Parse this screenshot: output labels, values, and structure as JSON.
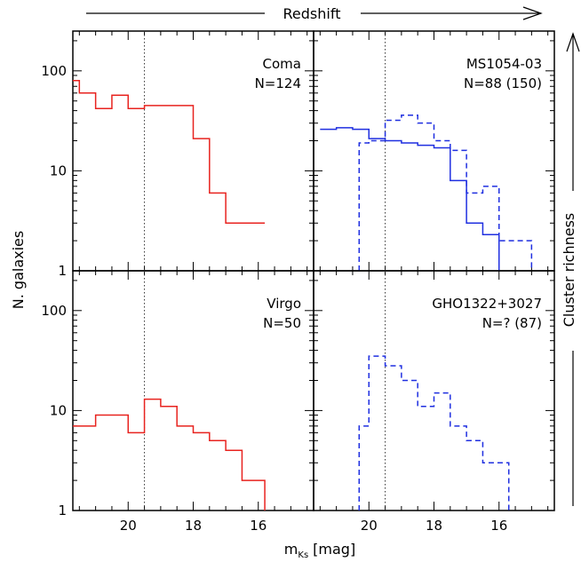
{
  "figure": {
    "top_label": "Redshift",
    "right_label": "Cluster richness",
    "ylabel": "N. galaxies",
    "xlabel_main": "m",
    "xlabel_sub": "Ks",
    "xlabel_unit": "[mag]"
  },
  "chart_data": [
    {
      "type": "histogram",
      "panel": "top-left",
      "name_label": "Coma",
      "n_label": "N=124",
      "xlim": [
        21.7,
        14.3
      ],
      "ylim": [
        1,
        250
      ],
      "yscale": "log",
      "xticks": [
        "20",
        "18",
        "16"
      ],
      "yticks": [
        "1",
        "10",
        "100"
      ],
      "vline_x": 19.5,
      "series": [
        {
          "color": "#e8231f",
          "dash": "solid",
          "edges": [
            21.7,
            21.5,
            21.0,
            20.5,
            20.0,
            19.5,
            19.0,
            18.0,
            17.5,
            17.0,
            15.8
          ],
          "values": [
            80,
            60,
            42,
            57,
            42,
            45,
            45,
            21,
            6,
            3,
            3
          ],
          "end_to": 1
        }
      ]
    },
    {
      "type": "histogram",
      "panel": "top-right",
      "name_label": "MS1054-03",
      "n_label": "N=88 (150)",
      "xlim": [
        21.7,
        14.3
      ],
      "ylim": [
        1,
        250
      ],
      "yscale": "log",
      "xticks": [
        "20",
        "18",
        "16"
      ],
      "yticks": [
        "1",
        "10",
        "100"
      ],
      "vline_x": 19.5,
      "series": [
        {
          "color": "#1f2fe0",
          "dash": "solid",
          "edges": [
            21.5,
            21.0,
            20.5,
            20.0,
            19.5,
            19.0,
            18.5,
            18.0,
            17.5,
            17.0,
            16.5,
            16.0
          ],
          "values": [
            26,
            27,
            26,
            21,
            20,
            19,
            18,
            17,
            8,
            3,
            2.3
          ],
          "end_to": 1
        },
        {
          "color": "#1f2fe0",
          "dash": "6,4",
          "start_from": 1,
          "edges": [
            20.3,
            20.0,
            19.5,
            19.0,
            18.5,
            18.0,
            17.5,
            17.0,
            16.5,
            16.0,
            15.5,
            15.0
          ],
          "values": [
            19,
            20,
            32,
            36,
            30,
            20,
            16,
            6,
            7,
            2,
            2
          ],
          "end_to": 1
        }
      ]
    },
    {
      "type": "histogram",
      "panel": "bottom-left",
      "name_label": "Virgo",
      "n_label": "N=50",
      "xlim": [
        21.7,
        14.3
      ],
      "ylim": [
        1,
        250
      ],
      "yscale": "log",
      "xticks": [
        "20",
        "18",
        "16"
      ],
      "yticks": [
        "1",
        "10",
        "100"
      ],
      "vline_x": 19.5,
      "series": [
        {
          "color": "#e8231f",
          "dash": "solid",
          "edges": [
            21.7,
            21.0,
            20.0,
            19.5,
            19.0,
            18.5,
            18.0,
            17.5,
            17.0,
            16.5,
            16.0,
            15.8
          ],
          "values": [
            7,
            9,
            6,
            13,
            11,
            7,
            6,
            5,
            4,
            2,
            2
          ],
          "end_to": 1
        }
      ]
    },
    {
      "type": "histogram",
      "panel": "bottom-right",
      "name_label": "GHO1322+3027",
      "n_label": "N=? (87)",
      "xlim": [
        21.7,
        14.3
      ],
      "ylim": [
        1,
        250
      ],
      "yscale": "log",
      "xticks": [
        "20",
        "18",
        "16"
      ],
      "yticks": [
        "1",
        "10",
        "100"
      ],
      "vline_x": 19.5,
      "series": [
        {
          "color": "#1f2fe0",
          "dash": "6,4",
          "start_from": 1,
          "edges": [
            20.3,
            20.0,
            19.5,
            19.0,
            18.5,
            18.0,
            17.5,
            17.0,
            16.5,
            16.0,
            15.7
          ],
          "values": [
            7,
            35,
            28,
            20,
            11,
            15,
            7,
            5,
            3,
            3
          ],
          "end_to": 1
        }
      ]
    }
  ]
}
